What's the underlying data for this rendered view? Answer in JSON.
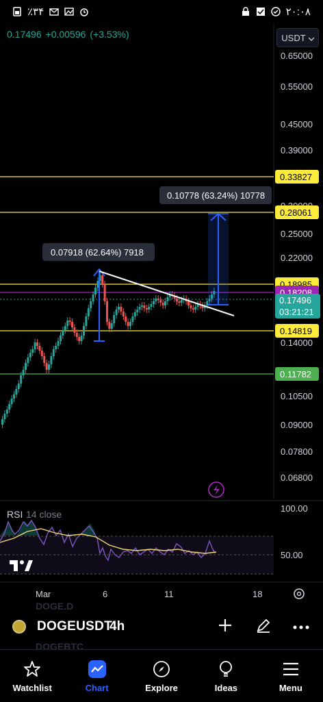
{
  "status_bar": {
    "left_text": "٪۳۴",
    "time": "۲۰:۰۸"
  },
  "header": {
    "last_price": "0.17496",
    "change": "+0.00596",
    "change_pct": "(+3.53%)",
    "currency": "USDT"
  },
  "price_axis": {
    "ticks": [
      "0.65000",
      "0.55000",
      "0.45000",
      "0.39000",
      "0.30000",
      "0.25000",
      "0.22000",
      "0.14000",
      "0.10500",
      "0.09000",
      "0.07800",
      "0.06800"
    ],
    "level_labels": [
      {
        "value": "0.33827",
        "color": "#ffeb3b",
        "text_color": "#000000"
      },
      {
        "value": "0.28061",
        "color": "#ffeb3b",
        "text_color": "#000000"
      },
      {
        "value": "0.18985",
        "color": "#ffeb3b",
        "text_color": "#000000"
      },
      {
        "value": "0.18208",
        "color": "#9c27b0",
        "text_color": "#ffffff"
      },
      {
        "value": "0.14819",
        "color": "#ffeb3b",
        "text_color": "#000000"
      },
      {
        "value": "0.11782",
        "color": "#4caf50",
        "text_color": "#ffffff"
      }
    ],
    "current_price_label": {
      "price": "0.17496",
      "countdown": "03:21:21",
      "color": "#26a69a"
    }
  },
  "annotations": {
    "measure_1": "0.07918 (62.64%) 7918",
    "measure_2": "0.10778 (63.24%) 10778"
  },
  "rsi": {
    "title": "RSI",
    "params": "14 close",
    "levels": [
      "100.00",
      "50.00"
    ]
  },
  "time_axis": {
    "labels": [
      "Mar",
      "6",
      "11",
      "18"
    ]
  },
  "toolbar": {
    "symbol": "DOGEUSDT",
    "timeframe": "4h",
    "ghost_top": "DOGE.D",
    "ghost_bottom": "DOGEBTC"
  },
  "nav": {
    "items": [
      {
        "label": "Watchlist",
        "icon": "star-icon",
        "active": false
      },
      {
        "label": "Chart",
        "icon": "chart-icon",
        "active": true
      },
      {
        "label": "Explore",
        "icon": "compass-icon",
        "active": false
      },
      {
        "label": "Ideas",
        "icon": "lightbulb-icon",
        "active": false
      },
      {
        "label": "Menu",
        "icon": "hamburger-icon",
        "active": false
      }
    ]
  },
  "colors": {
    "up": "#26a69a",
    "down": "#ef5350",
    "accent": "#2962ff",
    "level": "#ffeb3b",
    "purple": "#9c27b0",
    "green_label": "#4caf50"
  }
}
